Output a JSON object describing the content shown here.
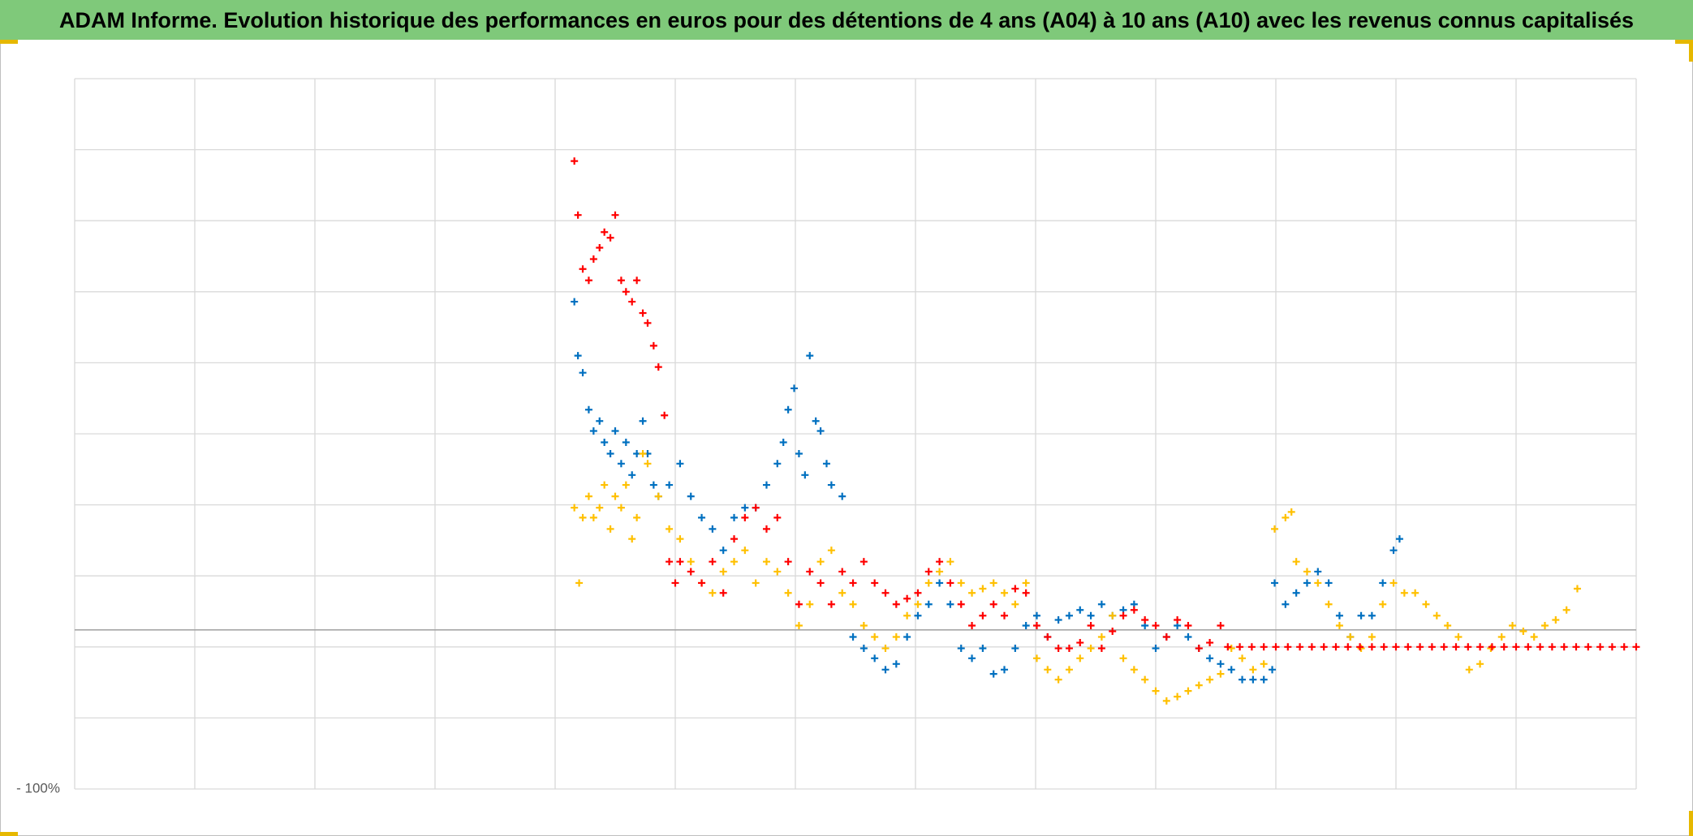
{
  "chart_data": {
    "type": "scatter",
    "title": "ADAM Informe. Evolution historique des performances en euros pour des détentions de 4 ans (A04) à 10 ans (A10) avec les revenus connus capitalisés",
    "xlim": [
      0,
      13
    ],
    "ylim": [
      -100,
      400
    ],
    "yticks": [
      {
        "value": -100,
        "label": "- 100%"
      }
    ],
    "xgrid": [
      0,
      1,
      2,
      3,
      4,
      5,
      6,
      7,
      8,
      9,
      10,
      11,
      12,
      13
    ],
    "ygrid": [
      -100,
      -50,
      0,
      50,
      100,
      150,
      200,
      250,
      300,
      350,
      400
    ],
    "axis_crossing": 12,
    "grid": true,
    "marker": "+",
    "series": [
      {
        "color": "#0070c0",
        "x": [
          4.16,
          4.19,
          4.23,
          4.28,
          4.32,
          4.37,
          4.41,
          4.46,
          4.5,
          4.55,
          4.59,
          4.64,
          4.68,
          4.73,
          4.77,
          4.82,
          4.86,
          4.95,
          5.04,
          5.13,
          5.22,
          5.31,
          5.4,
          5.49,
          5.58,
          5.67,
          5.76,
          5.85,
          5.9,
          5.94,
          5.99,
          6.03,
          6.08,
          6.12,
          6.17,
          6.21,
          6.26,
          6.3,
          6.39,
          6.48,
          6.57,
          6.66,
          6.75,
          6.84,
          6.93,
          7.02,
          7.11,
          7.2,
          7.29,
          7.38,
          7.47,
          7.56,
          7.65,
          7.74,
          7.83,
          7.92,
          8.01,
          8.1,
          8.19,
          8.28,
          8.37,
          8.46,
          8.55,
          8.64,
          8.73,
          8.82,
          8.91,
          9.0,
          9.09,
          9.18,
          9.27,
          9.36,
          9.45,
          9.54,
          9.63,
          9.72,
          9.81,
          9.9,
          9.97,
          9.99,
          10.08,
          10.17,
          10.26,
          10.35,
          10.44,
          10.53,
          10.62,
          10.71,
          10.8,
          10.89,
          10.98,
          11.03
        ],
        "values": [
          243,
          205,
          193,
          167,
          152,
          159,
          144,
          136,
          152,
          129,
          144,
          121,
          136,
          159,
          136,
          114,
          106,
          114,
          129,
          106,
          91,
          83,
          68,
          91,
          98,
          98,
          114,
          129,
          144,
          167,
          182,
          136,
          121,
          205,
          159,
          152,
          129,
          114,
          106,
          7,
          -1,
          -8,
          -16,
          -12,
          7,
          22,
          30,
          45,
          30,
          -1,
          -8,
          -1,
          -19,
          -16,
          -1,
          15,
          22,
          7,
          19,
          22,
          26,
          22,
          30,
          22,
          26,
          30,
          15,
          -1,
          7,
          15,
          7,
          -1,
          -8,
          -12,
          -16,
          -23,
          -23,
          -23,
          -16,
          45,
          30,
          38,
          45,
          53,
          45,
          22,
          7,
          22,
          22,
          45,
          68,
          76
        ]
      },
      {
        "color": "#ffc000",
        "x": [
          4.16,
          4.2,
          4.23,
          4.28,
          4.32,
          4.37,
          4.41,
          4.46,
          4.5,
          4.55,
          4.59,
          4.64,
          4.68,
          4.73,
          4.77,
          4.86,
          4.95,
          5.04,
          5.13,
          5.22,
          5.31,
          5.4,
          5.49,
          5.58,
          5.67,
          5.76,
          5.85,
          5.94,
          6.03,
          6.12,
          6.21,
          6.3,
          6.39,
          6.48,
          6.57,
          6.66,
          6.75,
          6.84,
          6.93,
          7.02,
          7.11,
          7.2,
          7.29,
          7.38,
          7.47,
          7.56,
          7.65,
          7.74,
          7.83,
          7.92,
          8.01,
          8.1,
          8.19,
          8.28,
          8.37,
          8.46,
          8.55,
          8.64,
          8.73,
          8.82,
          8.91,
          9.0,
          9.09,
          9.18,
          9.27,
          9.36,
          9.45,
          9.54,
          9.63,
          9.72,
          9.81,
          9.9,
          9.99,
          10.08,
          10.13,
          10.17,
          10.26,
          10.35,
          10.44,
          10.53,
          10.62,
          10.71,
          10.8,
          10.89,
          10.98,
          11.07,
          11.16,
          11.25,
          11.34,
          11.43,
          11.52,
          11.61,
          11.7,
          11.79,
          11.88,
          11.97,
          12.06,
          12.15,
          12.24,
          12.33,
          12.42,
          12.51
        ],
        "values": [
          98,
          45,
          91,
          106,
          91,
          98,
          114,
          83,
          106,
          98,
          114,
          76,
          91,
          136,
          129,
          106,
          83,
          76,
          60,
          45,
          38,
          53,
          60,
          68,
          45,
          60,
          53,
          38,
          15,
          30,
          60,
          68,
          38,
          30,
          15,
          7,
          -1,
          7,
          22,
          30,
          45,
          53,
          60,
          45,
          38,
          41,
          45,
          38,
          30,
          45,
          -8,
          -16,
          -23,
          -16,
          -8,
          -1,
          7,
          22,
          -8,
          -16,
          -23,
          -31,
          -38,
          -35,
          -31,
          -27,
          -23,
          -19,
          -1,
          -8,
          -16,
          -12,
          83,
          91,
          95,
          60,
          53,
          45,
          30,
          15,
          7,
          -1,
          7,
          30,
          45,
          38,
          38,
          30,
          22,
          15,
          7,
          -16,
          -12,
          -1,
          7,
          15,
          11,
          7,
          15,
          19,
          26,
          41
        ]
      },
      {
        "color": "#ff0000",
        "x": [
          4.16,
          4.19,
          4.23,
          4.28,
          4.32,
          4.37,
          4.41,
          4.46,
          4.5,
          4.55,
          4.59,
          4.64,
          4.68,
          4.73,
          4.77,
          4.82,
          4.86,
          4.91,
          4.95,
          5.0,
          5.04,
          5.13,
          5.22,
          5.31,
          5.4,
          5.49,
          5.58,
          5.67,
          5.76,
          5.85,
          5.94,
          6.03,
          6.12,
          6.21,
          6.3,
          6.39,
          6.48,
          6.57,
          6.66,
          6.75,
          6.84,
          6.93,
          7.02,
          7.11,
          7.2,
          7.29,
          7.38,
          7.47,
          7.56,
          7.65,
          7.74,
          7.83,
          7.92,
          8.01,
          8.1,
          8.19,
          8.28,
          8.37,
          8.46,
          8.55,
          8.64,
          8.73,
          8.82,
          8.91,
          9.0,
          9.09,
          9.18,
          9.27,
          9.36,
          9.45,
          9.54,
          9.6,
          9.7,
          9.8,
          9.9,
          10.0,
          10.1,
          10.2,
          10.3,
          10.4,
          10.5,
          10.6,
          10.7,
          10.8,
          10.9,
          11.0,
          11.1,
          11.2,
          11.3,
          11.4,
          11.5,
          11.6,
          11.7,
          11.8,
          11.9,
          12.0,
          12.1,
          12.2,
          12.3,
          12.4,
          12.5,
          12.6,
          12.7,
          12.8,
          12.9,
          13.0
        ],
        "values": [
          342,
          304,
          266,
          258,
          273,
          281,
          292,
          288,
          304,
          258,
          250,
          243,
          258,
          235,
          228,
          212,
          197,
          163,
          60,
          45,
          60,
          53,
          45,
          60,
          38,
          76,
          91,
          98,
          83,
          91,
          60,
          30,
          53,
          45,
          30,
          53,
          45,
          60,
          45,
          38,
          30,
          34,
          38,
          53,
          60,
          45,
          30,
          15,
          22,
          30,
          22,
          41,
          38,
          15,
          7,
          -1,
          -1,
          3,
          15,
          -1,
          11,
          22,
          26,
          19,
          15,
          7,
          19,
          15,
          -1,
          3,
          15,
          0,
          0,
          0,
          0,
          0,
          0,
          0,
          0,
          0,
          0,
          0,
          0,
          0,
          0,
          0,
          0,
          0,
          0,
          0,
          0,
          0,
          0,
          0,
          0,
          0,
          0,
          0,
          0,
          0,
          0,
          0,
          0,
          0,
          0,
          0
        ]
      }
    ]
  }
}
